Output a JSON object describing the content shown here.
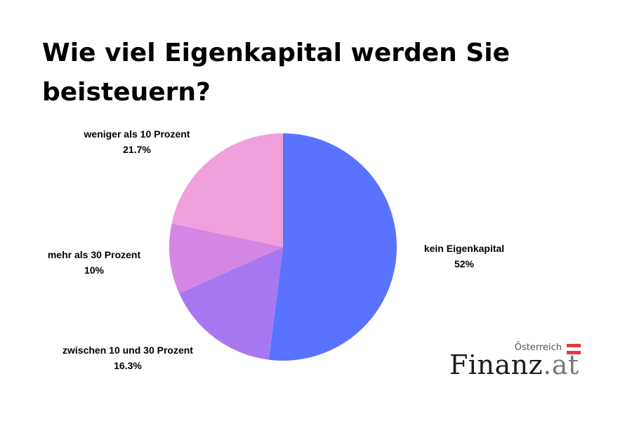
{
  "title": "Wie viel Eigenkapital werden Sie beisteuern?",
  "chart_data": {
    "type": "pie",
    "start": "12 o'clock",
    "direction": "clockwise",
    "slices": [
      {
        "label": "kein Eigenkapital",
        "value_label": "52%",
        "value": 52.0,
        "color": "#5A73FF"
      },
      {
        "label": "zwischen 10 und 30 Prozent",
        "value_label": "16.3%",
        "value": 16.3,
        "color": "#A679F0"
      },
      {
        "label": "mehr als 30 Prozent",
        "value_label": "10%",
        "value": 10.0,
        "color": "#D586E4"
      },
      {
        "label": "weniger als 10 Prozent",
        "value_label": "21.7%",
        "value": 21.7,
        "color": "#F0A0DA"
      }
    ]
  },
  "logo": {
    "region": "Österreich",
    "brand_main": "Finanz",
    "brand_tld": ".at",
    "flag_colors": [
      "#E03C46",
      "#FFFFFF",
      "#E03C46"
    ]
  }
}
